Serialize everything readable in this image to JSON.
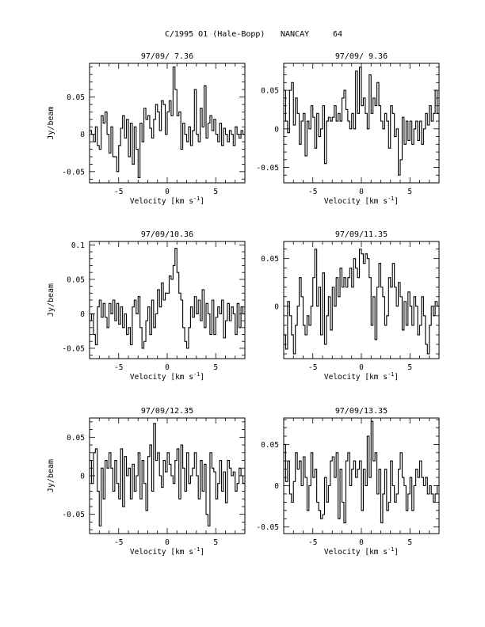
{
  "header": {
    "comet": "C/1995 O1 (Hale-Bopp)",
    "station": "NANCAY",
    "number": "64"
  },
  "chart_data": [
    {
      "type": "line",
      "title": "97/09/ 7.36",
      "xlabel": "Velocity [km s",
      "xlabel_sup": "-1",
      "xlabel_end": "]",
      "ylabel": "Jy/beam",
      "xlim": [
        -8,
        8
      ],
      "ylim": [
        -0.065,
        0.095
      ],
      "xticks": [
        -5,
        0,
        5
      ],
      "yticks": [
        -0.05,
        0,
        0.05
      ],
      "ytick_labels": [
        "-0.05",
        "0",
        "0.05"
      ],
      "x_start": -8.0,
      "x_step": 0.2,
      "y": [
        0.005,
        0.0,
        -0.01,
        0.01,
        -0.015,
        -0.02,
        0.025,
        0.015,
        0.03,
        0.0,
        -0.025,
        0.01,
        -0.03,
        -0.03,
        -0.05,
        -0.015,
        0.008,
        0.025,
        -0.005,
        0.02,
        -0.03,
        0.015,
        -0.04,
        0.01,
        -0.02,
        -0.058,
        0.015,
        -0.01,
        0.035,
        0.02,
        0.025,
        0.008,
        -0.005,
        0.02,
        0.04,
        0.03,
        0.005,
        0.045,
        0.04,
        0.0,
        0.03,
        0.045,
        0.025,
        0.09,
        0.06,
        0.025,
        0.03,
        -0.02,
        0.015,
        0.0,
        -0.01,
        0.01,
        -0.015,
        0.005,
        0.06,
        0.0,
        -0.01,
        0.035,
        0.01,
        0.065,
        -0.005,
        0.015,
        0.025,
        0.005,
        0.02,
        0.0,
        -0.01,
        0.015,
        -0.015,
        0.008,
        0.0,
        -0.01,
        0.005,
        0.0,
        -0.015,
        0.01,
        0.0,
        -0.005,
        0.005,
        0.0
      ]
    },
    {
      "type": "line",
      "title": "97/09/ 9.36",
      "xlabel": "Velocity [km s",
      "xlabel_sup": "-1",
      "xlabel_end": "]",
      "ylabel": "",
      "xlim": [
        -8,
        8
      ],
      "ylim": [
        -0.07,
        0.085
      ],
      "xticks": [
        -5,
        0,
        5
      ],
      "yticks": [
        -0.05,
        0,
        0.05
      ],
      "ytick_labels": [
        "-0.05",
        "0",
        "0.05"
      ],
      "x_start": -8.0,
      "x_step": 0.2,
      "y": [
        0.05,
        0.01,
        -0.005,
        0.05,
        0.06,
        0.005,
        0.04,
        0.02,
        -0.02,
        0.01,
        0.02,
        -0.035,
        0.01,
        0.0,
        0.03,
        0.015,
        -0.025,
        0.02,
        -0.01,
        0.0,
        0.03,
        -0.045,
        0.01,
        0.015,
        0.01,
        0.015,
        0.03,
        0.01,
        0.02,
        0.01,
        0.04,
        0.05,
        0.025,
        0.01,
        0.0,
        0.02,
        0.0,
        0.075,
        0.02,
        0.08,
        0.03,
        0.04,
        0.02,
        0.0,
        0.07,
        0.02,
        0.04,
        0.03,
        0.06,
        0.03,
        0.01,
        0.0,
        0.02,
        0.01,
        -0.025,
        0.03,
        0.02,
        -0.01,
        0.0,
        -0.06,
        -0.04,
        0.015,
        -0.02,
        0.01,
        -0.015,
        0.01,
        -0.02,
        0.0,
        0.01,
        -0.015,
        0.01,
        -0.02,
        0.0,
        0.02,
        0.005,
        0.03,
        0.01,
        0.02,
        0.05,
        0.02
      ]
    },
    {
      "type": "line",
      "title": "97/09/10.36",
      "xlabel": "Velocity [km s",
      "xlabel_sup": "-1",
      "xlabel_end": "]",
      "ylabel": "Jy/beam",
      "xlim": [
        -8,
        8
      ],
      "ylim": [
        -0.065,
        0.105
      ],
      "xticks": [
        -5,
        0,
        5
      ],
      "yticks": [
        -0.05,
        0,
        0.05,
        0.1
      ],
      "ytick_labels": [
        "-0.05",
        "0",
        "0.05",
        "0.1"
      ],
      "x_start": -8.0,
      "x_step": 0.2,
      "y": [
        -0.01,
        0.0,
        -0.03,
        -0.045,
        0.01,
        0.02,
        -0.005,
        0.015,
        -0.005,
        -0.02,
        0.015,
        0.0,
        0.02,
        -0.01,
        0.015,
        -0.015,
        0.01,
        -0.02,
        0.0,
        -0.03,
        -0.02,
        -0.045,
        0.01,
        0.02,
        0.0,
        0.025,
        -0.02,
        -0.05,
        -0.04,
        -0.01,
        0.01,
        -0.03,
        0.02,
        -0.02,
        0.0,
        0.035,
        0.01,
        0.045,
        0.02,
        0.03,
        0.03,
        0.055,
        0.05,
        0.07,
        0.095,
        0.06,
        0.03,
        0.02,
        -0.02,
        -0.04,
        -0.05,
        -0.02,
        0.01,
        -0.005,
        0.025,
        0.0,
        0.02,
        -0.01,
        0.035,
        -0.02,
        0.015,
        0.0,
        -0.03,
        0.02,
        -0.03,
        -0.005,
        0.01,
        0.0,
        0.02,
        -0.035,
        -0.01,
        0.015,
        -0.01,
        0.01,
        0.0,
        -0.03,
        0.015,
        -0.02,
        0.01,
        0.0
      ]
    },
    {
      "type": "line",
      "title": "97/09/11.35",
      "xlabel": "Velocity [km s",
      "xlabel_sup": "-1",
      "xlabel_end": "]",
      "ylabel": "",
      "xlim": [
        -8,
        8
      ],
      "ylim": [
        -0.055,
        0.068
      ],
      "xticks": [
        -5,
        0,
        5
      ],
      "yticks": [
        0,
        0.05
      ],
      "ytick_labels": [
        "0",
        "0.05"
      ],
      "x_start": -8.0,
      "x_step": 0.2,
      "y": [
        -0.03,
        -0.045,
        0.005,
        -0.01,
        -0.03,
        -0.05,
        -0.02,
        0.0,
        0.03,
        0.01,
        -0.02,
        -0.03,
        -0.01,
        -0.02,
        0.0,
        0.03,
        0.06,
        0.0,
        0.02,
        -0.03,
        0.035,
        -0.04,
        -0.01,
        0.01,
        -0.025,
        0.02,
        0.0,
        0.03,
        0.01,
        0.04,
        0.02,
        0.03,
        0.02,
        0.03,
        0.04,
        0.02,
        0.05,
        0.04,
        0.03,
        0.06,
        0.055,
        0.045,
        0.055,
        0.05,
        0.03,
        -0.02,
        0.01,
        -0.035,
        0.02,
        0.045,
        0.02,
        0.01,
        -0.02,
        -0.01,
        0.03,
        0.02,
        0.045,
        0.02,
        0.0,
        0.025,
        0.01,
        -0.025,
        0.005,
        -0.02,
        0.015,
        0.0,
        -0.02,
        0.01,
        0.0,
        -0.03,
        -0.02,
        0.01,
        -0.01,
        -0.04,
        -0.05,
        -0.02,
        0.0,
        -0.01,
        0.005,
        0.0
      ]
    },
    {
      "type": "line",
      "title": "97/09/12.35",
      "xlabel": "Velocity [km s",
      "xlabel_sup": "-1",
      "xlabel_end": "]",
      "ylabel": "Jy/beam",
      "xlim": [
        -8,
        8
      ],
      "ylim": [
        -0.075,
        0.075
      ],
      "xticks": [
        -5,
        0,
        5
      ],
      "yticks": [
        -0.05,
        0,
        0.05
      ],
      "ytick_labels": [
        "-0.05",
        "0",
        "0.05"
      ],
      "x_start": -8.0,
      "x_step": 0.2,
      "y": [
        0.02,
        -0.01,
        0.03,
        0.035,
        -0.02,
        -0.065,
        0.01,
        -0.03,
        0.02,
        0.01,
        0.03,
        0.01,
        -0.02,
        0.02,
        -0.01,
        -0.03,
        0.035,
        -0.04,
        0.025,
        0.0,
        0.01,
        -0.03,
        0.015,
        -0.02,
        0.0,
        0.03,
        -0.03,
        0.02,
        -0.01,
        -0.045,
        0.025,
        0.04,
        -0.02,
        0.068,
        0.02,
        0.03,
        0.0,
        -0.015,
        0.02,
        0.005,
        0.03,
        0.015,
        0.0,
        -0.01,
        0.02,
        0.035,
        -0.03,
        0.04,
        0.01,
        -0.02,
        0.03,
        -0.01,
        0.0,
        0.01,
        0.03,
        0.0,
        -0.03,
        0.02,
        -0.02,
        0.015,
        -0.05,
        -0.065,
        0.03,
        0.01,
        0.005,
        -0.03,
        -0.01,
        0.02,
        -0.02,
        0.005,
        -0.035,
        0.02,
        0.01,
        0.0,
        0.005,
        -0.02,
        -0.01,
        0.01,
        0.0,
        -0.01
      ]
    },
    {
      "type": "line",
      "title": "97/09/13.35",
      "xlabel": "Velocity [km s",
      "xlabel_sup": "-1",
      "xlabel_end": "]",
      "ylabel": "",
      "xlim": [
        -8,
        8
      ],
      "ylim": [
        -0.058,
        0.082
      ],
      "xticks": [
        -5,
        0,
        5
      ],
      "yticks": [
        -0.05,
        0,
        0.05
      ],
      "ytick_labels": [
        "-0.05",
        "0",
        "0.05"
      ],
      "x_start": -8.0,
      "x_step": 0.2,
      "y": [
        0.05,
        0.005,
        0.03,
        -0.01,
        -0.02,
        0.005,
        0.04,
        0.02,
        0.03,
        0.0,
        0.035,
        0.01,
        -0.03,
        0.0,
        0.04,
        0.01,
        0.02,
        -0.02,
        -0.03,
        -0.04,
        -0.035,
        0.01,
        -0.02,
        0.0,
        0.03,
        0.035,
        0.01,
        0.04,
        -0.04,
        0.02,
        -0.02,
        -0.045,
        0.03,
        0.04,
        0.0,
        0.02,
        0.03,
        0.01,
        0.02,
        0.03,
        -0.03,
        0.02,
        0.0,
        0.06,
        0.01,
        0.078,
        0.03,
        0.04,
        -0.01,
        0.02,
        -0.045,
        -0.01,
        0.02,
        -0.03,
        -0.02,
        0.03,
        0.0,
        -0.02,
        -0.01,
        0.02,
        0.04,
        0.01,
        0.0,
        -0.03,
        -0.01,
        0.01,
        -0.03,
        0.0,
        0.02,
        0.01,
        0.03,
        0.01,
        0.0,
        0.01,
        -0.01,
        0.0,
        -0.01,
        -0.02,
        -0.01,
        0.0
      ]
    }
  ]
}
